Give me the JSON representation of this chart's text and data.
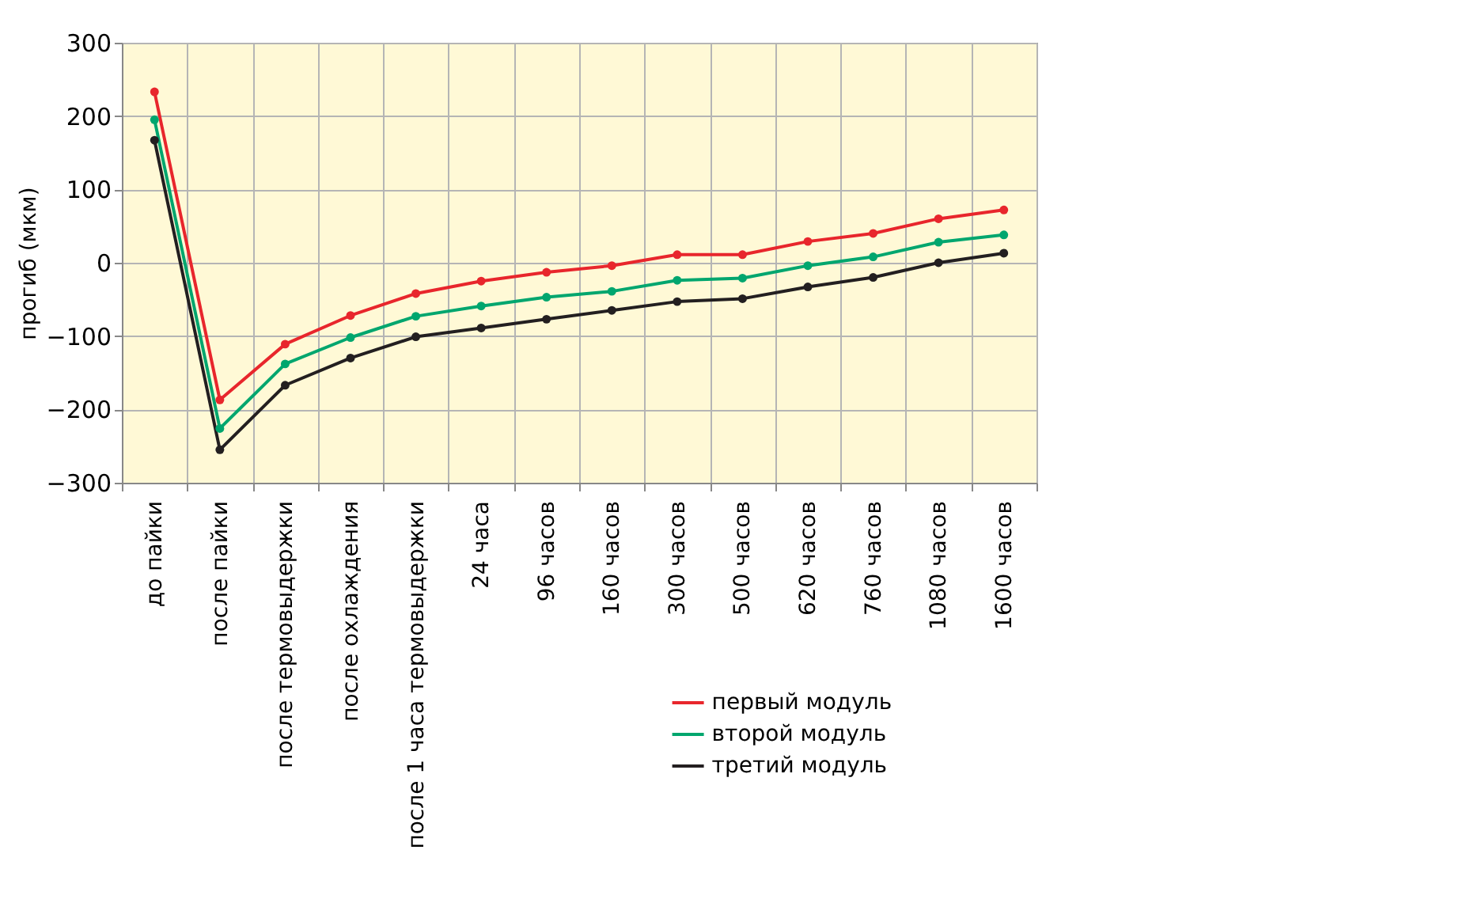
{
  "chart_data": {
    "type": "line",
    "ylabel": "прогиб (мкм)",
    "categories": [
      "до пайки",
      "после пайки",
      "после термовыдержки",
      "после охлаждения",
      "после 1 часа термовыдержки",
      "24 часа",
      "96 часов",
      "160 часов",
      "300 часов",
      "500 часов",
      "620 часов",
      "760 часов",
      "1080 часов",
      "1600 часов"
    ],
    "series": [
      {
        "name": "первый модуль",
        "color": "#e8262c",
        "values": [
          233,
          -187,
          -111,
          -72,
          -42,
          -25,
          -13,
          -4,
          11,
          11,
          29,
          40,
          60,
          72
        ]
      },
      {
        "name": "второй модуль",
        "color": "#00a66e",
        "values": [
          195,
          -226,
          -138,
          -102,
          -73,
          -59,
          -47,
          -39,
          -24,
          -21,
          -4,
          8,
          28,
          38
        ]
      },
      {
        "name": "третий модуль",
        "color": "#231f20",
        "values": [
          167,
          -255,
          -167,
          -130,
          -101,
          -89,
          -77,
          -65,
          -53,
          -49,
          -33,
          -20,
          0,
          13
        ]
      }
    ],
    "ylim": [
      -300,
      300
    ],
    "yticks": [
      -300,
      -200,
      -100,
      0,
      100,
      200,
      300
    ],
    "grid": true,
    "legend": "bottom right",
    "marker": "circle",
    "line_style": "solid"
  }
}
